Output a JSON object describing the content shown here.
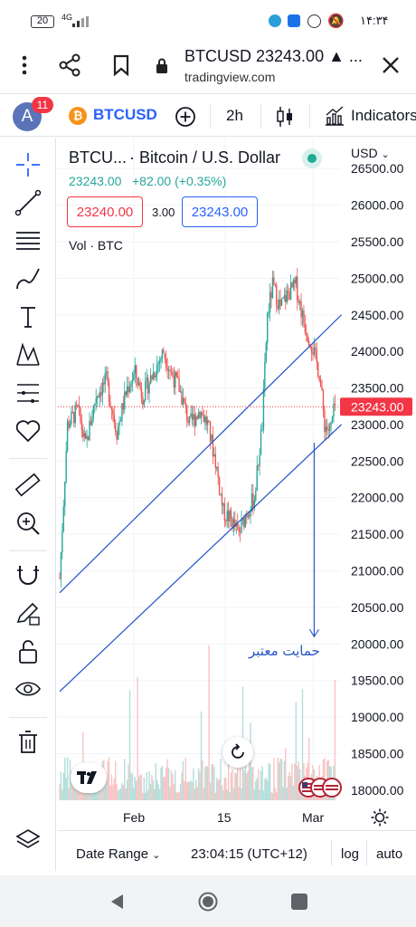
{
  "status_bar": {
    "battery": "20",
    "network": "4G",
    "time": "۱۴:۳۴"
  },
  "browser": {
    "title": "BTCUSD 23243.00 ▲ ...",
    "domain": "tradingview.com"
  },
  "toolbar": {
    "avatar_letter": "A",
    "notification_count": "11",
    "symbol": "BTCUSD",
    "interval": "2h",
    "indicators_label": "Indicators"
  },
  "legend": {
    "symbol": "BTCU...",
    "description": "· Bitcoin / U.S. Dollar",
    "price": "23243.00",
    "change": "+82.00 (+0.35%)",
    "sell": "23240.00",
    "spread": "3.00",
    "buy": "23243.00",
    "volume_label": "Vol · BTC"
  },
  "price_axis": {
    "currency": "USD",
    "ticks": [
      "26500.00",
      "26000.00",
      "25500.00",
      "25000.00",
      "24500.00",
      "24000.00",
      "23500.00",
      "23000.00",
      "22500.00",
      "22000.00",
      "21500.00",
      "21000.00",
      "20500.00",
      "20000.00",
      "19500.00",
      "19000.00",
      "18500.00",
      "18000.00"
    ],
    "current_price": "23243.00"
  },
  "time_axis": {
    "labels": [
      "Feb",
      "15",
      "Mar"
    ]
  },
  "annotation": {
    "text": "حمایت معتبر"
  },
  "bottom_bar": {
    "date_range": "Date Range",
    "time": "23:04:15 (UTC+12)",
    "log": "log",
    "auto": "auto"
  },
  "colors": {
    "up": "#26a69a",
    "down": "#ef5350",
    "accent": "#2962ff",
    "trendline": "#1e4fc9"
  },
  "chart_data": {
    "type": "candlestick",
    "symbol": "BTCUSD",
    "interval": "2h",
    "ylim": [
      17900,
      26700
    ],
    "x_labels": [
      "Feb",
      "15",
      "Mar"
    ],
    "close_path": [
      {
        "i": 0,
        "v": 20900
      },
      {
        "i": 6,
        "v": 23000
      },
      {
        "i": 14,
        "v": 23200
      },
      {
        "i": 20,
        "v": 22700
      },
      {
        "i": 28,
        "v": 23400
      },
      {
        "i": 36,
        "v": 23600
      },
      {
        "i": 44,
        "v": 22900
      },
      {
        "i": 52,
        "v": 23500
      },
      {
        "i": 58,
        "v": 23700
      },
      {
        "i": 64,
        "v": 23400
      },
      {
        "i": 72,
        "v": 23700
      },
      {
        "i": 80,
        "v": 24000
      },
      {
        "i": 86,
        "v": 23700
      },
      {
        "i": 92,
        "v": 23500
      },
      {
        "i": 100,
        "v": 23000
      },
      {
        "i": 108,
        "v": 23200
      },
      {
        "i": 114,
        "v": 23000
      },
      {
        "i": 120,
        "v": 22500
      },
      {
        "i": 126,
        "v": 21800
      },
      {
        "i": 132,
        "v": 21700
      },
      {
        "i": 138,
        "v": 21500
      },
      {
        "i": 144,
        "v": 21800
      },
      {
        "i": 150,
        "v": 22000
      },
      {
        "i": 156,
        "v": 23000
      },
      {
        "i": 160,
        "v": 24500
      },
      {
        "i": 164,
        "v": 24900
      },
      {
        "i": 170,
        "v": 24600
      },
      {
        "i": 176,
        "v": 24800
      },
      {
        "i": 182,
        "v": 24900
      },
      {
        "i": 188,
        "v": 24400
      },
      {
        "i": 194,
        "v": 24100
      },
      {
        "i": 200,
        "v": 23700
      },
      {
        "i": 204,
        "v": 23000
      },
      {
        "i": 208,
        "v": 22900
      },
      {
        "i": 212,
        "v": 23243
      }
    ],
    "last_price": 23243.0,
    "trendlines": [
      {
        "from": {
          "i": 0,
          "v": 20700
        },
        "to": {
          "i": 217,
          "v": 24500
        }
      },
      {
        "from": {
          "i": 0,
          "v": 19350
        },
        "to": {
          "i": 217,
          "v": 23000
        }
      }
    ],
    "arrow": {
      "at_i": 196,
      "from_v": 22750,
      "to_v": 20100
    }
  }
}
